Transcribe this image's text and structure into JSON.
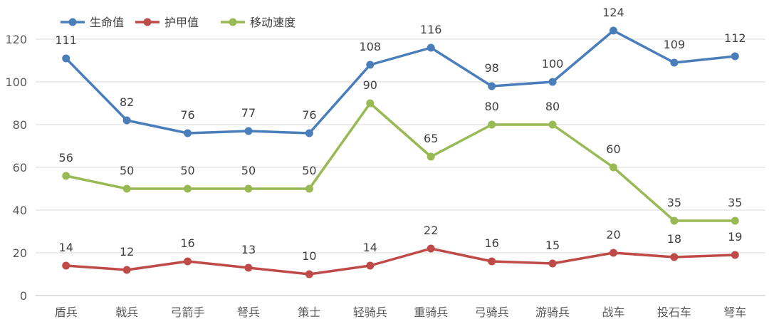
{
  "chart_data": {
    "type": "line",
    "categories": [
      "盾兵",
      "戟兵",
      "弓箭手",
      "弩兵",
      "策士",
      "轻骑兵",
      "重骑兵",
      "弓骑兵",
      "游骑兵",
      "战车",
      "投石车",
      "弩车"
    ],
    "series": [
      {
        "name": "生命值",
        "color": "#4a7ebb",
        "values": [
          111,
          82,
          76,
          77,
          76,
          108,
          116,
          98,
          100,
          124,
          109,
          112
        ]
      },
      {
        "name": "护甲值",
        "color": "#be4b48",
        "values": [
          14,
          12,
          16,
          13,
          10,
          14,
          22,
          16,
          15,
          20,
          18,
          19
        ]
      },
      {
        "name": "移动速度",
        "color": "#98b954",
        "values": [
          56,
          50,
          50,
          50,
          50,
          90,
          65,
          80,
          80,
          60,
          35,
          35
        ]
      }
    ],
    "yticks": [
      0,
      20,
      40,
      60,
      80,
      100,
      120
    ],
    "ylim": [
      0,
      130
    ],
    "grid": true,
    "legend": "top-left",
    "title": "",
    "xlabel": "",
    "ylabel": ""
  }
}
